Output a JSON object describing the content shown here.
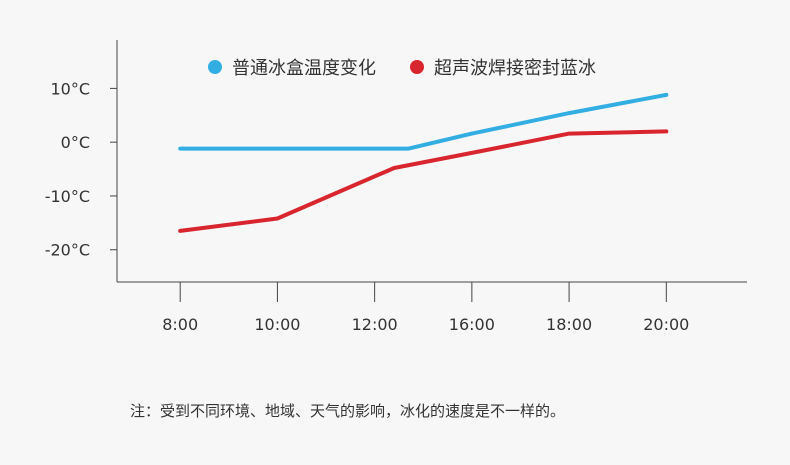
{
  "chart_data": {
    "type": "line",
    "categories": [
      "8:00",
      "10:00",
      "12:00",
      "16:00",
      "18:00",
      "20:00"
    ],
    "y_ticks": [
      "10°C",
      "0°C",
      "-10°C",
      "-20°C"
    ],
    "y_tick_values": [
      10,
      0,
      -10,
      -20
    ],
    "ylim": [
      -26,
      19
    ],
    "xlim": [
      -0.65,
      5.83
    ],
    "series": [
      {
        "name": "普通冰盒温度变化",
        "color": "#33aee3",
        "points": [
          [
            0,
            -1.2
          ],
          [
            1,
            -1.2
          ],
          [
            2,
            -1.2
          ],
          [
            2.35,
            -1.2
          ],
          [
            3,
            1.6
          ],
          [
            4,
            5.4
          ],
          [
            5,
            8.8
          ]
        ]
      },
      {
        "name": "超声波焊接密封蓝冰",
        "color": "#d8252e",
        "points": [
          [
            0,
            -16.5
          ],
          [
            1,
            -14.2
          ],
          [
            2.2,
            -4.8
          ],
          [
            3,
            -2.0
          ],
          [
            4,
            1.6
          ],
          [
            5,
            2.0
          ]
        ]
      }
    ],
    "grid": false,
    "legend_position": "top"
  },
  "note": "注：受到不同环境、地域、天气的影响，冰化的速度是不一样的。"
}
